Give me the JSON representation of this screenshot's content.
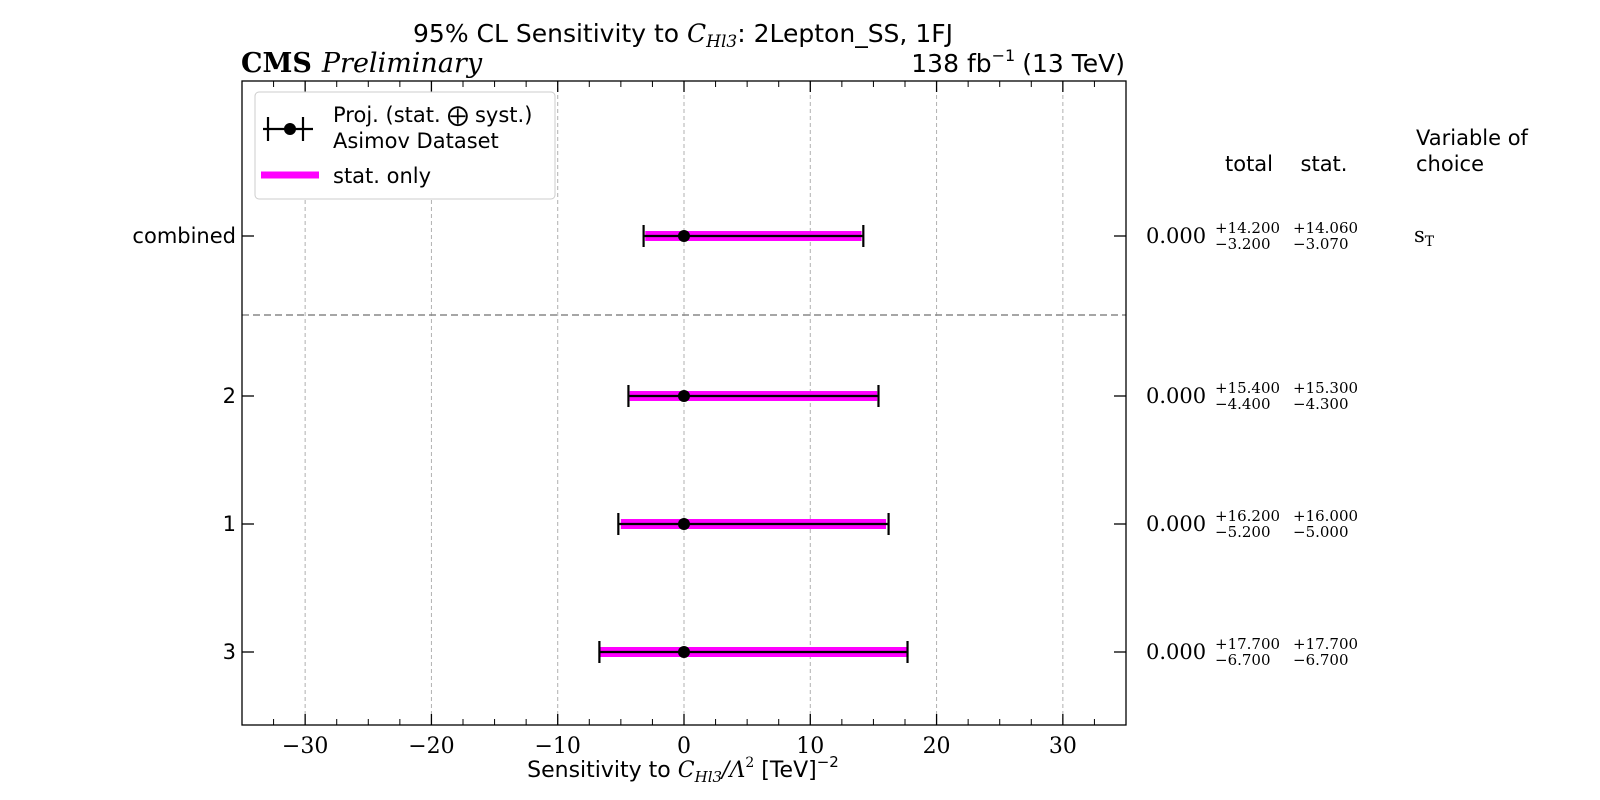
{
  "chart_data": {
    "type": "errorbar",
    "title_prefix": "95% CL Sensitivity to ",
    "title_var": "C",
    "title_var_sub": "Hl3",
    "title_suffix": ": 2Lepton_SS, 1FJ",
    "experiment": "CMS",
    "status": "Preliminary",
    "lumi_value": "138 fb",
    "lumi_exp": "−1",
    "energy": "(13 TeV)",
    "xlabel_prefix": "Sensitivity to ",
    "xlabel_math": "C",
    "xlabel_sub": "Hl3",
    "xlabel_mid": "/Λ",
    "xlabel_sup": "2",
    "xlabel_unit": " [TeV]",
    "xlabel_unit_exp": "−2",
    "xlim": [
      -35,
      35
    ],
    "xticks": [
      -30,
      -20,
      -10,
      0,
      10,
      20,
      30
    ],
    "xtick_labels": [
      "−30",
      "−20",
      "−10",
      "0",
      "10",
      "20",
      "30"
    ],
    "grid": true,
    "legend": {
      "placement": "top-left",
      "entries": [
        "Proj. (stat. ⨁ syst.)",
        "Asimov Dataset",
        "stat. only"
      ]
    },
    "table_headers": {
      "total": "total",
      "stat": "stat.",
      "variable": [
        "Variable of",
        "choice"
      ]
    },
    "colors": {
      "stat_band": "#ff00ff",
      "total": "#000000",
      "separator": "#888888"
    },
    "rows": [
      {
        "label": "combined",
        "central": 0.0,
        "central_text": "0.000",
        "total_up": 14.2,
        "total_down": -3.2,
        "stat_up": 14.06,
        "stat_down": -3.07,
        "total_up_text": "+14.200",
        "total_down_text": "−3.200",
        "stat_up_text": "+14.060",
        "stat_down_text": "−3.070",
        "variable": "s",
        "variable_sub": "T"
      },
      {
        "label": "2",
        "central": 0.0,
        "central_text": "0.000",
        "total_up": 15.4,
        "total_down": -4.4,
        "stat_up": 15.3,
        "stat_down": -4.3,
        "total_up_text": "+15.400",
        "total_down_text": "−4.400",
        "stat_up_text": "+15.300",
        "stat_down_text": "−4.300"
      },
      {
        "label": "1",
        "central": 0.0,
        "central_text": "0.000",
        "total_up": 16.2,
        "total_down": -5.2,
        "stat_up": 16.0,
        "stat_down": -5.0,
        "total_up_text": "+16.200",
        "total_down_text": "−5.200",
        "stat_up_text": "+16.000",
        "stat_down_text": "−5.000"
      },
      {
        "label": "3",
        "central": 0.0,
        "central_text": "0.000",
        "total_up": 17.7,
        "total_down": -6.7,
        "stat_up": 17.7,
        "stat_down": -6.7,
        "total_up_text": "+17.700",
        "total_down_text": "−6.700",
        "stat_up_text": "+17.700",
        "stat_down_text": "−6.700"
      }
    ]
  }
}
